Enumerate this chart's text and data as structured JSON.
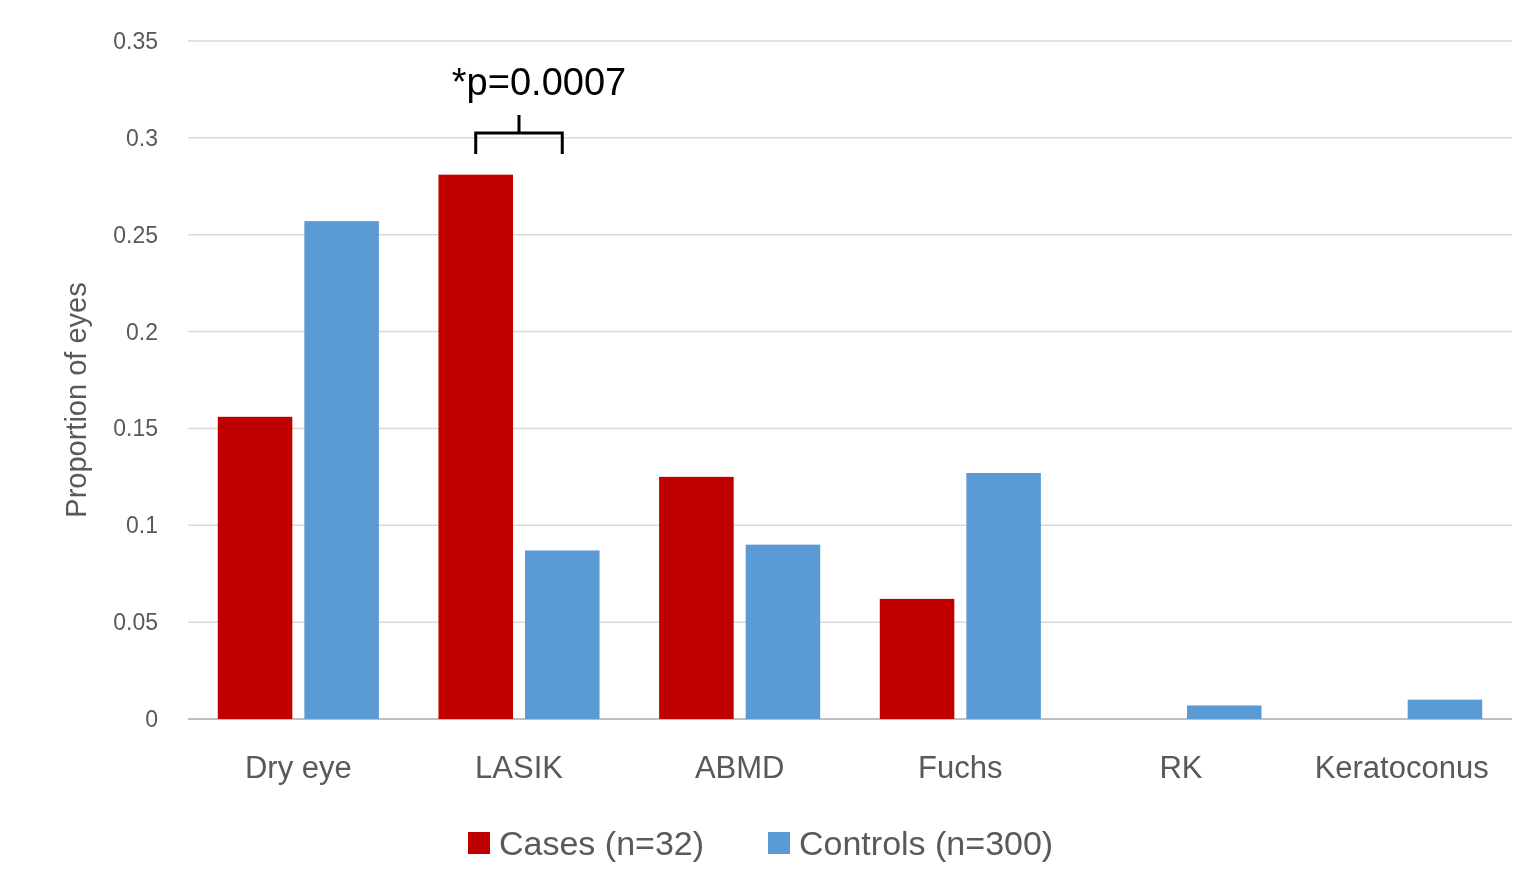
{
  "chart_data": {
    "type": "bar",
    "ylabel": "Proportion of eyes",
    "categories": [
      "Dry eye",
      "LASIK",
      "ABMD",
      "Fuchs",
      "RK",
      "Keratoconus"
    ],
    "series": [
      {
        "name": "Cases (n=32)",
        "color": "#c00000",
        "values": [
          0.156,
          0.281,
          0.125,
          0.062,
          0,
          0
        ]
      },
      {
        "name": "Controls (n=300)",
        "color": "#5b9bd5",
        "values": [
          0.257,
          0.087,
          0.09,
          0.127,
          0.007,
          0.01
        ]
      }
    ],
    "ylim": [
      0,
      0.35
    ],
    "yticks": [
      0,
      0.05,
      0.1,
      0.15,
      0.2,
      0.25,
      0.3,
      0.35
    ],
    "grid": "y",
    "legend": "bottom",
    "annotations": [
      "*p=0.0007"
    ]
  }
}
